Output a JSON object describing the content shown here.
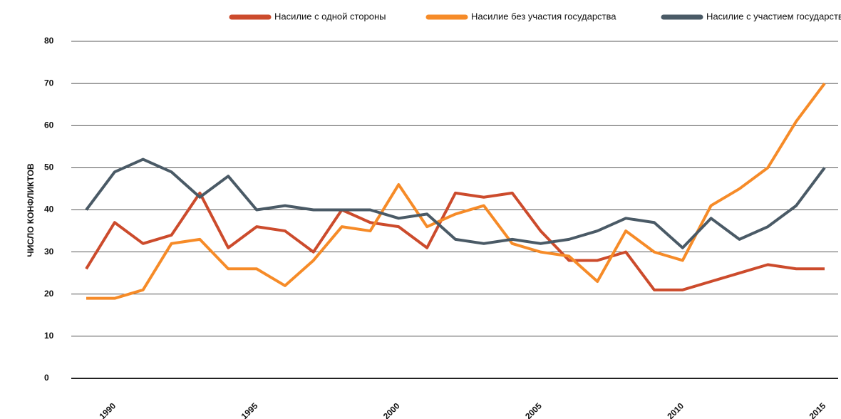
{
  "chart_data": {
    "type": "line",
    "y_label": "ЧИСЛО КОНФЛИКТОВ",
    "x": [
      1989,
      1990,
      1991,
      1992,
      1993,
      1994,
      1995,
      1996,
      1997,
      1998,
      1999,
      2000,
      2001,
      2002,
      2003,
      2004,
      2005,
      2006,
      2007,
      2008,
      2009,
      2010,
      2011,
      2012,
      2013,
      2014,
      2015
    ],
    "series": [
      {
        "name": "Насилие с одной стороны",
        "color": "#cc4b2c",
        "values": [
          26,
          37,
          32,
          34,
          44,
          31,
          36,
          35,
          30,
          40,
          37,
          36,
          31,
          44,
          43,
          44,
          35,
          28,
          28,
          30,
          21,
          21,
          23,
          25,
          27,
          26,
          26
        ]
      },
      {
        "name": "Насилие без участия государства",
        "color": "#f68b28",
        "values": [
          19,
          19,
          21,
          32,
          33,
          26,
          26,
          22,
          28,
          36,
          35,
          46,
          36,
          39,
          41,
          32,
          30,
          29,
          23,
          35,
          30,
          28,
          41,
          45,
          50,
          61,
          70
        ]
      },
      {
        "name": "Насилие с участием государства",
        "color": "#4a5a66",
        "values": [
          40,
          49,
          52,
          49,
          43,
          48,
          40,
          41,
          40,
          40,
          40,
          38,
          39,
          33,
          32,
          33,
          32,
          33,
          35,
          38,
          37,
          31,
          38,
          33,
          36,
          41,
          50
        ]
      }
    ],
    "xlim": [
      1989,
      2015
    ],
    "xticks": [
      1990,
      1995,
      2000,
      2005,
      2010,
      2015
    ],
    "ylim": [
      0,
      80
    ],
    "yticks": [
      0,
      10,
      20,
      30,
      40,
      50,
      60,
      70,
      80
    ],
    "grid": true,
    "legend": "top-right"
  }
}
